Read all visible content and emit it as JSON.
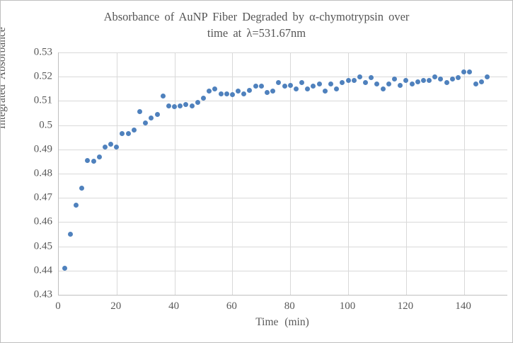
{
  "window": {
    "background": "#ffffff",
    "border_color": "#bfbfbf"
  },
  "chart_data": {
    "type": "scatter",
    "title": "Absorbance of AuNP Fiber Degraded by α-chymotrypsin over time at λ=531.67nm",
    "title_lines": [
      "Absorbance of AuNP Fiber Degraded by α-chymotrypsin over",
      "time at λ=531.67nm"
    ],
    "xlabel": "Time (min)",
    "ylabel": "Integrated Absorbance",
    "xlim": [
      0,
      155
    ],
    "ylim": [
      0.43,
      0.53
    ],
    "x_ticks": [
      0,
      20,
      40,
      60,
      80,
      100,
      120,
      140
    ],
    "y_ticks": [
      "0.43",
      "0.44",
      "0.45",
      "0.46",
      "0.47",
      "0.48",
      "0.49",
      "0.5",
      "0.51",
      "0.52",
      "0.53"
    ],
    "grid": true,
    "legend": "none",
    "marker_color": "#4f81bd",
    "gridline_color": "#d9d9d9",
    "axis_color": "#bfbfbf",
    "text_color": "#595959",
    "points": [
      [
        2,
        0.441
      ],
      [
        4,
        0.455
      ],
      [
        6,
        0.467
      ],
      [
        8,
        0.474
      ],
      [
        10,
        0.4855
      ],
      [
        12,
        0.485
      ],
      [
        14,
        0.487
      ],
      [
        16,
        0.491
      ],
      [
        18,
        0.492
      ],
      [
        20,
        0.491
      ],
      [
        22,
        0.4965
      ],
      [
        24,
        0.4965
      ],
      [
        26,
        0.498
      ],
      [
        28,
        0.5055
      ],
      [
        30,
        0.501
      ],
      [
        32,
        0.503
      ],
      [
        34,
        0.5045
      ],
      [
        36,
        0.512
      ],
      [
        38,
        0.508
      ],
      [
        40,
        0.5075
      ],
      [
        42,
        0.508
      ],
      [
        44,
        0.5085
      ],
      [
        46,
        0.508
      ],
      [
        48,
        0.5095
      ],
      [
        50,
        0.511
      ],
      [
        52,
        0.514
      ],
      [
        54,
        0.515
      ],
      [
        56,
        0.513
      ],
      [
        58,
        0.513
      ],
      [
        60,
        0.5125
      ],
      [
        62,
        0.514
      ],
      [
        64,
        0.513
      ],
      [
        66,
        0.5145
      ],
      [
        68,
        0.516
      ],
      [
        70,
        0.516
      ],
      [
        72,
        0.5135
      ],
      [
        74,
        0.514
      ],
      [
        76,
        0.5175
      ],
      [
        78,
        0.516
      ],
      [
        80,
        0.5165
      ],
      [
        82,
        0.515
      ],
      [
        84,
        0.5175
      ],
      [
        86,
        0.515
      ],
      [
        88,
        0.516
      ],
      [
        90,
        0.517
      ],
      [
        92,
        0.514
      ],
      [
        94,
        0.517
      ],
      [
        96,
        0.515
      ],
      [
        98,
        0.5175
      ],
      [
        100,
        0.5185
      ],
      [
        102,
        0.5185
      ],
      [
        104,
        0.52
      ],
      [
        106,
        0.5175
      ],
      [
        108,
        0.5195
      ],
      [
        110,
        0.517
      ],
      [
        112,
        0.515
      ],
      [
        114,
        0.517
      ],
      [
        116,
        0.519
      ],
      [
        118,
        0.5165
      ],
      [
        120,
        0.5185
      ],
      [
        122,
        0.517
      ],
      [
        124,
        0.518
      ],
      [
        126,
        0.5185
      ],
      [
        128,
        0.5185
      ],
      [
        130,
        0.52
      ],
      [
        132,
        0.519
      ],
      [
        134,
        0.5175
      ],
      [
        136,
        0.519
      ],
      [
        138,
        0.5195
      ],
      [
        140,
        0.522
      ],
      [
        142,
        0.522
      ],
      [
        144,
        0.517
      ],
      [
        146,
        0.518
      ],
      [
        148,
        0.52
      ]
    ]
  }
}
